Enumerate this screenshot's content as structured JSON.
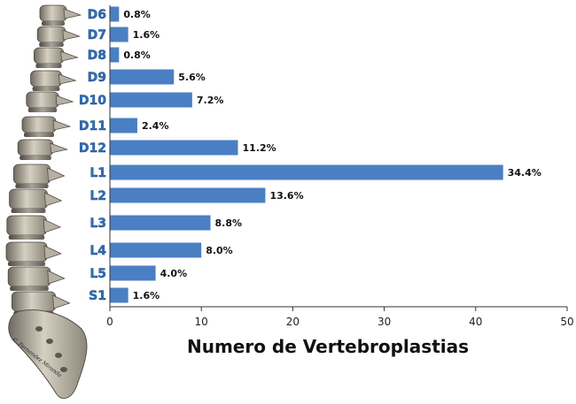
{
  "chart_data": {
    "type": "bar",
    "orientation": "horizontal",
    "categories": [
      "D6",
      "D7",
      "D8",
      "D9",
      "D10",
      "D11",
      "D12",
      "L1",
      "L2",
      "L3",
      "L4",
      "L5",
      "S1"
    ],
    "values": [
      1,
      2,
      1,
      7,
      9,
      3,
      14,
      43,
      17,
      11,
      10,
      5,
      2
    ],
    "data_labels": [
      "0.8%",
      "1.6%",
      "0.8%",
      "5.6%",
      "7.2%",
      "2.4%",
      "11.2%",
      "34.4%",
      "13.6%",
      "8.8%",
      "8.0%",
      "4.0%",
      "1.6%"
    ],
    "xlabel": "Numero de Vertebroplastias",
    "xlim": [
      0,
      50
    ],
    "xticks": [
      0,
      10,
      20,
      30,
      40,
      50
    ],
    "bar_color": "#4a7fc4",
    "label_color": "#2f6fbd",
    "grid": false,
    "legend": "none"
  },
  "image_credit": "C. Fernandez Miranda"
}
